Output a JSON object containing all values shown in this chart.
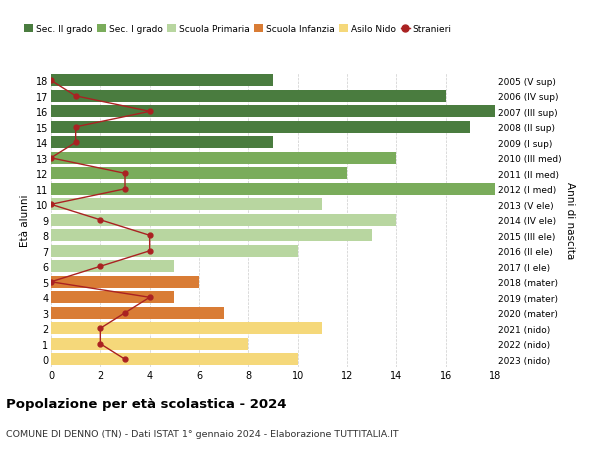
{
  "ages": [
    18,
    17,
    16,
    15,
    14,
    13,
    12,
    11,
    10,
    9,
    8,
    7,
    6,
    5,
    4,
    3,
    2,
    1,
    0
  ],
  "year_labels": [
    "2005 (V sup)",
    "2006 (IV sup)",
    "2007 (III sup)",
    "2008 (II sup)",
    "2009 (I sup)",
    "2010 (III med)",
    "2011 (II med)",
    "2012 (I med)",
    "2013 (V ele)",
    "2014 (IV ele)",
    "2015 (III ele)",
    "2016 (II ele)",
    "2017 (I ele)",
    "2018 (mater)",
    "2019 (mater)",
    "2020 (mater)",
    "2021 (nido)",
    "2022 (nido)",
    "2023 (nido)"
  ],
  "bar_values": [
    9,
    16,
    18,
    17,
    9,
    14,
    12,
    18,
    11,
    14,
    13,
    10,
    5,
    6,
    5,
    7,
    11,
    8,
    10
  ],
  "stranieri": [
    0,
    1,
    4,
    1,
    1,
    0,
    3,
    3,
    0,
    2,
    4,
    4,
    2,
    0,
    4,
    3,
    2,
    2,
    3
  ],
  "bar_colors": [
    "#4a7c3f",
    "#4a7c3f",
    "#4a7c3f",
    "#4a7c3f",
    "#4a7c3f",
    "#7aac5b",
    "#7aac5b",
    "#7aac5b",
    "#b8d6a0",
    "#b8d6a0",
    "#b8d6a0",
    "#b8d6a0",
    "#b8d6a0",
    "#d97c35",
    "#d97c35",
    "#d97c35",
    "#f5d87a",
    "#f5d87a",
    "#f5d87a"
  ],
  "legend_labels": [
    "Sec. II grado",
    "Sec. I grado",
    "Scuola Primaria",
    "Scuola Infanzia",
    "Asilo Nido",
    "Stranieri"
  ],
  "legend_colors": [
    "#4a7c3f",
    "#7aac5b",
    "#b8d6a0",
    "#d97c35",
    "#f5d87a",
    "#aa2222"
  ],
  "stranieri_color": "#aa2222",
  "title": "Popolazione per età scolastica - 2024",
  "subtitle": "COMUNE DI DENNO (TN) - Dati ISTAT 1° gennaio 2024 - Elaborazione TUTTITALIA.IT",
  "ylabel_left": "Età alunni",
  "ylabel_right": "Anni di nascita",
  "xlim": [
    0,
    18
  ],
  "xticks": [
    0,
    2,
    4,
    6,
    8,
    10,
    12,
    14,
    16,
    18
  ],
  "background_color": "#ffffff",
  "grid_color": "#cccccc"
}
